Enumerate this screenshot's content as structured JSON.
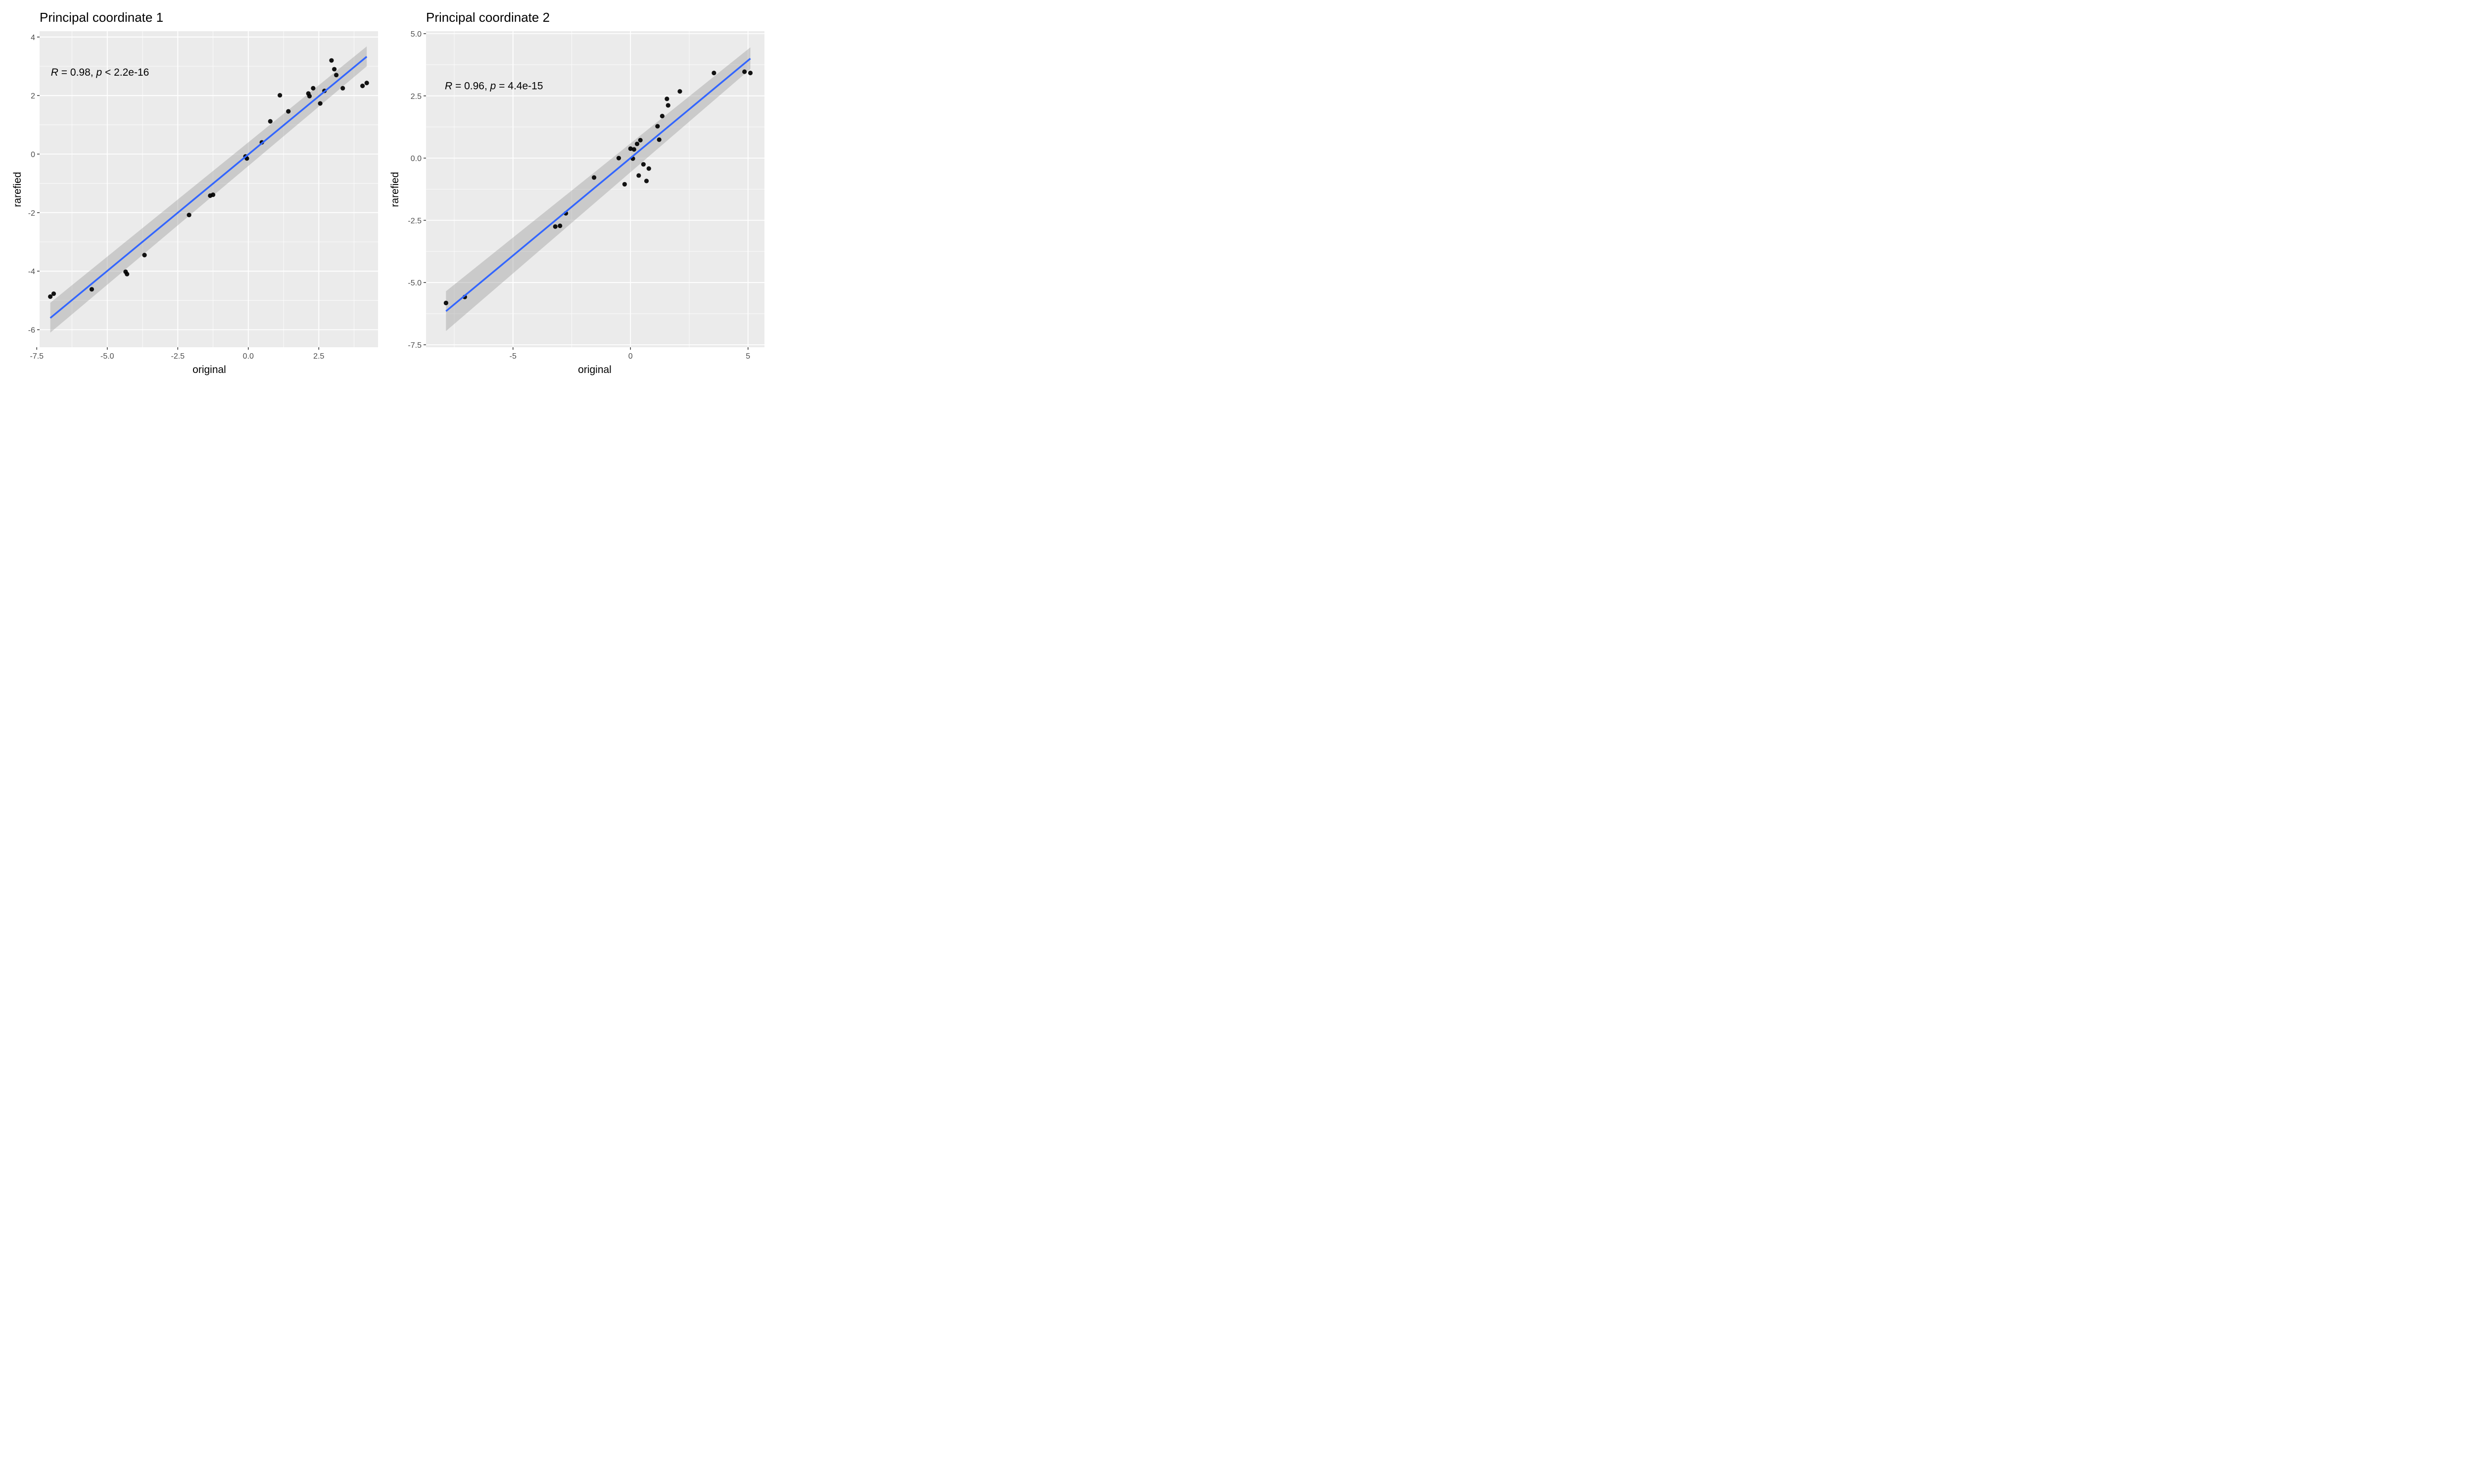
{
  "chart_data": [
    {
      "type": "scatter",
      "title": "Principal coordinate 1",
      "xlabel": "original",
      "ylabel": "rarefied",
      "xlim": [
        -7.4,
        4.6
      ],
      "ylim": [
        -6.6,
        4.2
      ],
      "x_ticks": [
        -7.5,
        -5.0,
        -2.5,
        0.0,
        2.5
      ],
      "x_tick_labels": [
        "-7.5",
        "-5.0",
        "-2.5",
        "0.0",
        "2.5"
      ],
      "y_ticks": [
        -6,
        -4,
        -2,
        0,
        2,
        4
      ],
      "y_tick_labels": [
        "-6",
        "-4",
        "-2",
        "0",
        "2",
        "4"
      ],
      "grid": true,
      "annotation": {
        "r_symbol": "R",
        "r_text": " = 0.98, ",
        "p_symbol": "p",
        "p_text": " < 2.2e-16",
        "x": -7.0,
        "y": 2.8
      },
      "series": [
        {
          "x": [
            -7.02,
            -6.9,
            -5.55,
            -4.35,
            -4.3,
            -3.68,
            -2.1,
            -1.35,
            -1.25,
            -0.1,
            -0.05,
            0.48,
            0.78,
            1.12,
            1.42,
            2.13,
            2.17,
            2.3,
            2.55,
            2.7,
            2.95,
            3.05,
            3.12,
            3.35,
            4.05,
            4.2
          ],
          "y": [
            -4.87,
            -4.77,
            -4.62,
            -4.02,
            -4.1,
            -3.45,
            -2.08,
            -1.42,
            -1.39,
            -0.08,
            -0.15,
            0.4,
            1.12,
            2.01,
            1.46,
            2.07,
            1.98,
            2.25,
            1.73,
            2.16,
            3.2,
            2.9,
            2.7,
            2.25,
            2.33,
            2.43
          ]
        }
      ],
      "fit": {
        "x": [
          -7.02,
          4.2
        ],
        "y": [
          -5.6,
          3.33
        ],
        "ci_lower": [
          -6.1,
          3.0
        ],
        "ci_upper": [
          -5.08,
          3.68
        ],
        "color": "#3366ff"
      },
      "colors": {
        "points": "#000000",
        "ribbon": "#999999",
        "panel": "#ebebeb",
        "grid": "#ffffff"
      }
    },
    {
      "type": "scatter",
      "title": "Principal coordinate 2",
      "xlabel": "original",
      "ylabel": "rarefied",
      "xlim": [
        -8.7,
        5.7
      ],
      "ylim": [
        -7.6,
        5.1
      ],
      "x_ticks": [
        -5,
        0,
        5
      ],
      "x_tick_labels": [
        "-5",
        "0",
        "5"
      ],
      "y_ticks": [
        -7.5,
        -5.0,
        -2.5,
        0.0,
        2.5,
        5.0
      ],
      "y_tick_labels": [
        "-7.5",
        "-5.0",
        "-2.5",
        "0.0",
        "2.5",
        "5.0"
      ],
      "grid": true,
      "annotation": {
        "r_symbol": "R",
        "r_text": " = 0.96, ",
        "p_symbol": "p",
        "p_text": " = 4.4e-15",
        "x": -7.9,
        "y": 2.9
      },
      "series": [
        {
          "x": [
            -7.85,
            -7.05,
            -3.2,
            -3.0,
            -2.75,
            -1.55,
            -0.5,
            -0.25,
            0.0,
            0.1,
            0.15,
            0.28,
            0.35,
            0.42,
            0.55,
            0.68,
            0.78,
            1.15,
            1.22,
            1.35,
            1.55,
            1.6,
            2.1,
            3.55,
            4.85,
            5.1
          ],
          "y": [
            -5.82,
            -5.58,
            -2.75,
            -2.72,
            -2.22,
            -0.78,
            0.0,
            -1.05,
            0.38,
            -0.02,
            0.35,
            0.57,
            -0.7,
            0.72,
            -0.25,
            -0.92,
            -0.42,
            1.28,
            0.74,
            1.69,
            2.38,
            2.12,
            2.68,
            3.42,
            3.47,
            3.42
          ]
        }
      ],
      "fit": {
        "x": [
          -7.85,
          5.1
        ],
        "y": [
          -6.15,
          4.0
        ],
        "ci_lower": [
          -6.95,
          3.58
        ],
        "ci_upper": [
          -5.35,
          4.45
        ],
        "color": "#3366ff"
      },
      "colors": {
        "points": "#000000",
        "ribbon": "#999999",
        "panel": "#ebebeb",
        "grid": "#ffffff"
      }
    }
  ]
}
